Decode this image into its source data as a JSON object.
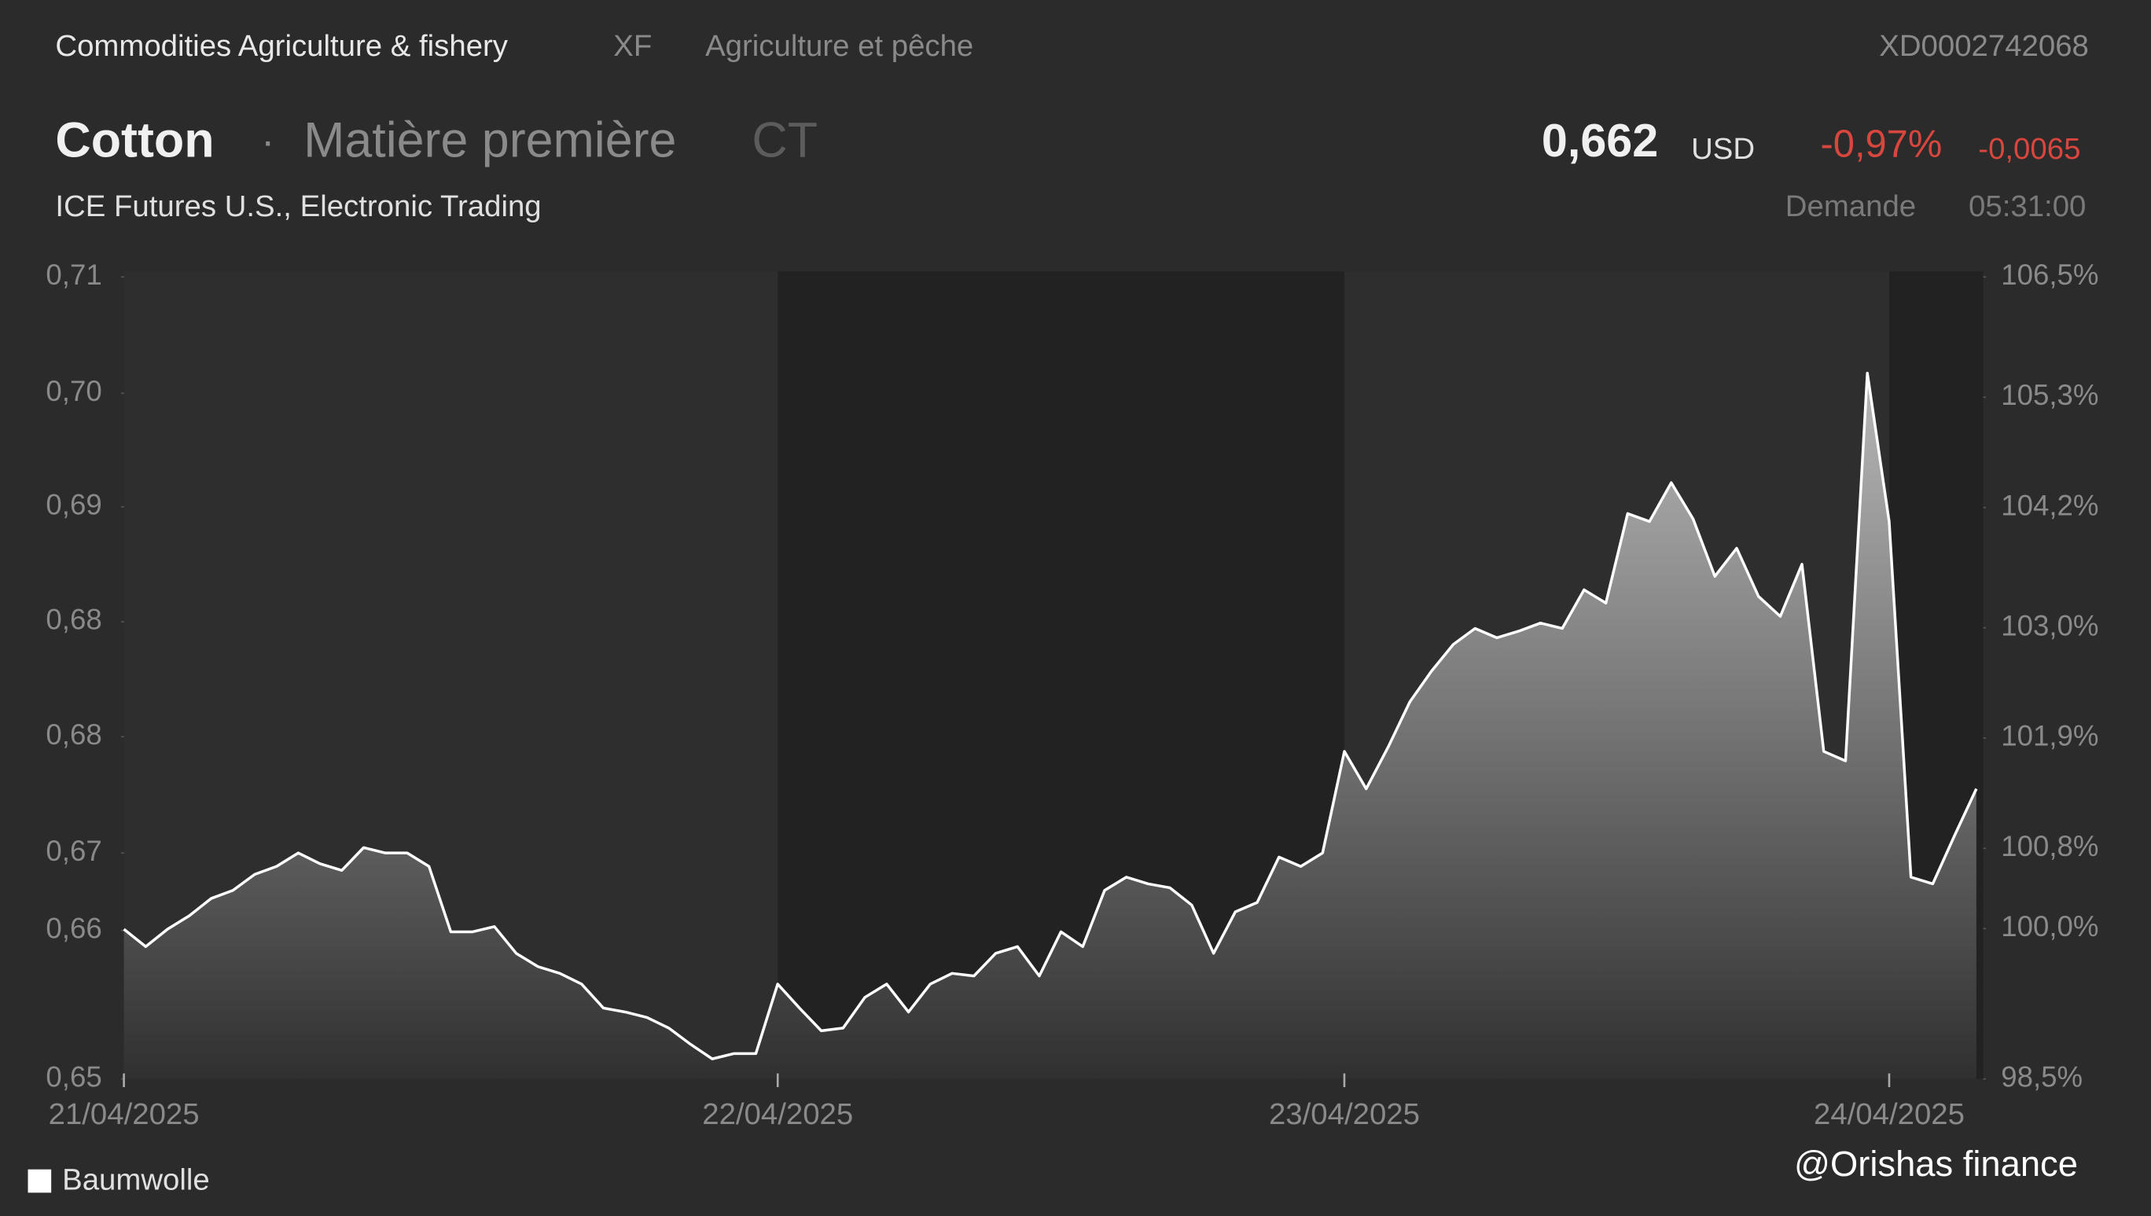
{
  "header": {
    "breadcrumb": "Commodities Agriculture & fishery",
    "exchange_code": "XF",
    "category_fr": "Agriculture et pêche",
    "isin": "XD0002742068",
    "name": "Cotton",
    "separator": "·",
    "kind": "Matière première",
    "symbol": "CT",
    "market": "ICE Futures U.S., Electronic Trading",
    "price": "0,662",
    "currency": "USD",
    "change_pct": "-0,97%",
    "change_abs": "-0,0065",
    "quote_type": "Demande",
    "time": "05:31:00"
  },
  "watermark": "@Orishas finance",
  "chart_data": {
    "type": "area",
    "xticks": [
      {
        "value": 0,
        "label": "21/04/2025"
      },
      {
        "value": 30,
        "label": "22/04/2025"
      },
      {
        "value": 56,
        "label": "23/04/2025"
      },
      {
        "value": 81,
        "label": "24/04/2025"
      }
    ],
    "series": [
      {
        "name": "Baumwolle",
        "color": "#ffffff",
        "values": [
          0.6612,
          0.6599,
          0.6612,
          0.6622,
          0.6635,
          0.6641,
          0.6653,
          0.6659,
          0.6669,
          0.6661,
          0.6656,
          0.6673,
          0.6669,
          0.6669,
          0.6659,
          0.661,
          0.661,
          0.6614,
          0.6594,
          0.6584,
          0.6579,
          0.6571,
          0.6553,
          0.655,
          0.6546,
          0.6538,
          0.6526,
          0.6515,
          0.6519,
          0.6519,
          0.6571,
          0.6553,
          0.6536,
          0.6538,
          0.6561,
          0.6571,
          0.655,
          0.6571,
          0.6579,
          0.6577,
          0.6594,
          0.6599,
          0.6577,
          0.661,
          0.6599,
          0.6641,
          0.6651,
          0.6646,
          0.6643,
          0.663,
          0.6594,
          0.6625,
          0.6632,
          0.6666,
          0.6659,
          0.6669,
          0.6745,
          0.6717,
          0.6748,
          0.6782,
          0.6805,
          0.6825,
          0.6837,
          0.683,
          0.6835,
          0.6841,
          0.6837,
          0.6866,
          0.6856,
          0.6923,
          0.6917,
          0.6946,
          0.6919,
          0.6876,
          0.6897,
          0.6861,
          0.6846,
          0.6885,
          0.6745,
          0.6738,
          0.7028,
          0.6917,
          0.6651,
          0.6646,
          0.6682,
          0.6717
        ]
      }
    ],
    "ylim": [
      0.65,
      0.71
    ],
    "yticks": [
      {
        "value": 0.71,
        "label": "0,71"
      },
      {
        "value": 0.7013,
        "label": "0,70"
      },
      {
        "value": 0.6928,
        "label": "0,69"
      },
      {
        "value": 0.6842,
        "label": "0,68"
      },
      {
        "value": 0.6756,
        "label": "0,68"
      },
      {
        "value": 0.6669,
        "label": "0,67"
      },
      {
        "value": 0.6611,
        "label": "0,66"
      },
      {
        "value": 0.65,
        "label": "0,65"
      }
    ],
    "y2lim": [
      98.5,
      106.5
    ],
    "y2ticks": [
      {
        "value": 106.5,
        "label": "106,5%"
      },
      {
        "value": 105.3,
        "label": "105,3%"
      },
      {
        "value": 104.2,
        "label": "104,2%"
      },
      {
        "value": 103.0,
        "label": "103,0%"
      },
      {
        "value": 101.9,
        "label": "101,9%"
      },
      {
        "value": 100.8,
        "label": "100,8%"
      },
      {
        "value": 100.0,
        "label": "100,0%"
      },
      {
        "value": 98.5,
        "label": "98,5%"
      }
    ]
  }
}
